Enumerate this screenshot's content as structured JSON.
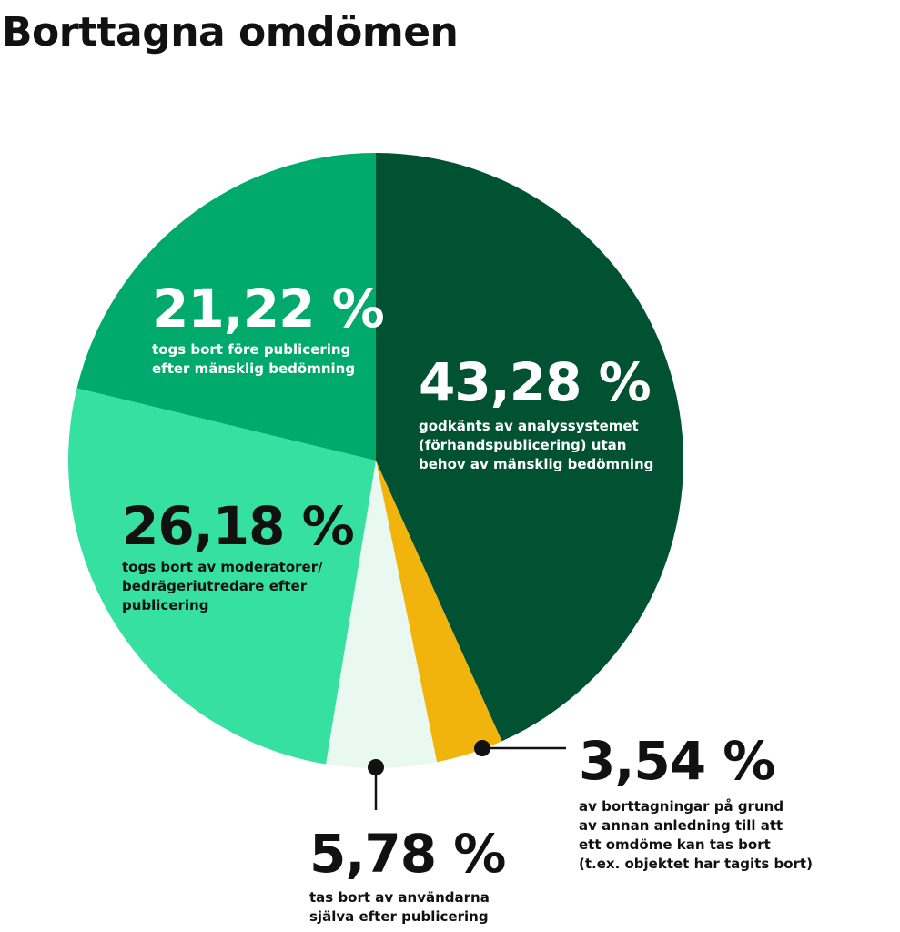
{
  "chart_data": {
    "type": "pie",
    "title": "Borttagna omdömen",
    "slices": [
      {
        "label": "43,28 %",
        "value": 43.28,
        "description": [
          "godkänts av analyssystemet",
          "(förhandspublicering) utan",
          "behov av mänsklig bedömning"
        ],
        "color": "#005232"
      },
      {
        "label": "3,54 %",
        "value": 3.54,
        "description": [
          "av borttagningar på grund",
          "av annan anledning till att",
          "ett omdöme kan tas bort",
          "(t.ex. objektet har tagits bort)"
        ],
        "color": "#f0b40c"
      },
      {
        "label": "5,78 %",
        "value": 5.78,
        "description": [
          "tas bort av användarna",
          "själva efter publicering"
        ],
        "color": "#e9f8f1"
      },
      {
        "label": "26,18 %",
        "value": 26.18,
        "description": [
          "togs bort av moderatorer/",
          "bedrägeriutredare efter",
          "publicering"
        ],
        "color": "#35e0a1"
      },
      {
        "label": "21,22 %",
        "value": 21.22,
        "description": [
          "togs bort före publicering",
          "efter mänsklig bedömning"
        ],
        "color": "#00aa6c"
      }
    ]
  }
}
